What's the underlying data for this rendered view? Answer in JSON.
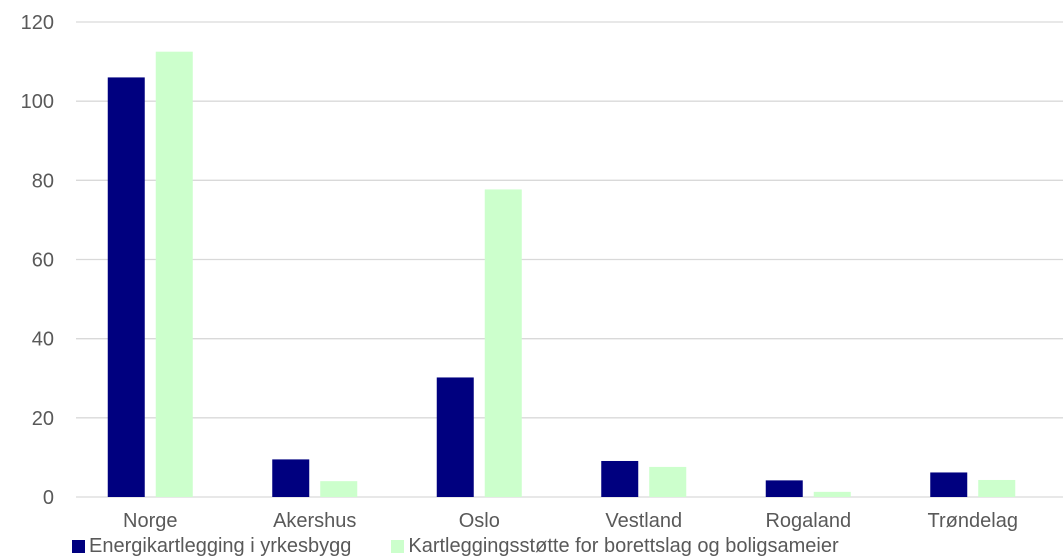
{
  "chart_data": {
    "type": "bar",
    "categories": [
      "Norge",
      "Akershus",
      "Oslo",
      "Vestland",
      "Rogaland",
      "Trøndelag"
    ],
    "series": [
      {
        "name": "Energikartlegging i yrkesbygg",
        "color": "#00007f",
        "values": [
          106,
          9.5,
          30.2,
          9.1,
          4.2,
          6.2
        ]
      },
      {
        "name": "Kartleggingsstøtte for borettslag og boligsameier",
        "color": "#ccffcc",
        "values": [
          112.5,
          4.0,
          77.7,
          7.6,
          1.3,
          4.3
        ]
      }
    ],
    "ylim": [
      0,
      120
    ],
    "yticks": [
      0,
      20,
      40,
      60,
      80,
      100,
      120
    ],
    "grid": true,
    "legend_position": "bottom"
  }
}
